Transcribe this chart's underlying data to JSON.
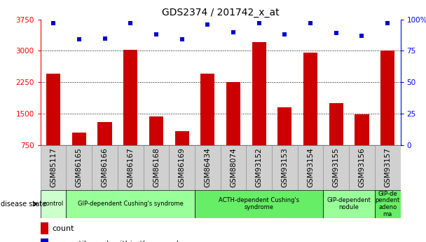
{
  "title": "GDS2374 / 201742_x_at",
  "samples": [
    "GSM85117",
    "GSM86165",
    "GSM86166",
    "GSM86167",
    "GSM86168",
    "GSM86169",
    "GSM86434",
    "GSM88074",
    "GSM93152",
    "GSM93153",
    "GSM93154",
    "GSM93155",
    "GSM93156",
    "GSM93157"
  ],
  "counts": [
    2450,
    1050,
    1300,
    3020,
    1430,
    1080,
    2450,
    2250,
    3200,
    1650,
    2960,
    1750,
    1480,
    3010
  ],
  "percentiles": [
    97,
    84,
    85,
    97,
    88,
    84,
    96,
    90,
    97,
    88,
    97,
    89,
    87,
    97
  ],
  "ylim_left": [
    750,
    3750
  ],
  "ylim_right": [
    0,
    100
  ],
  "yticks_left": [
    750,
    1500,
    2250,
    3000,
    3750
  ],
  "yticks_right": [
    0,
    25,
    50,
    75,
    100
  ],
  "groups": [
    {
      "label": "control",
      "start": 0,
      "end": 1,
      "color": "#ccffcc"
    },
    {
      "label": "GIP-dependent Cushing's syndrome",
      "start": 1,
      "end": 6,
      "color": "#99ff99"
    },
    {
      "label": "ACTH-dependent Cushing's\nsyndrome",
      "start": 6,
      "end": 11,
      "color": "#66ee66"
    },
    {
      "label": "GIP-dependent\nnodule",
      "start": 11,
      "end": 13,
      "color": "#99ff99"
    },
    {
      "label": "GIP-de\npendent\nadeno\nma",
      "start": 13,
      "end": 14,
      "color": "#66ee66"
    }
  ],
  "bar_color": "#cc0000",
  "dot_color": "#0000cc",
  "grid_vals": [
    1500,
    2250,
    3000
  ],
  "title_fontsize": 10,
  "tick_fontsize": 7.5,
  "sample_cell_color": "#d0d0d0",
  "sample_cell_border": "#888888"
}
